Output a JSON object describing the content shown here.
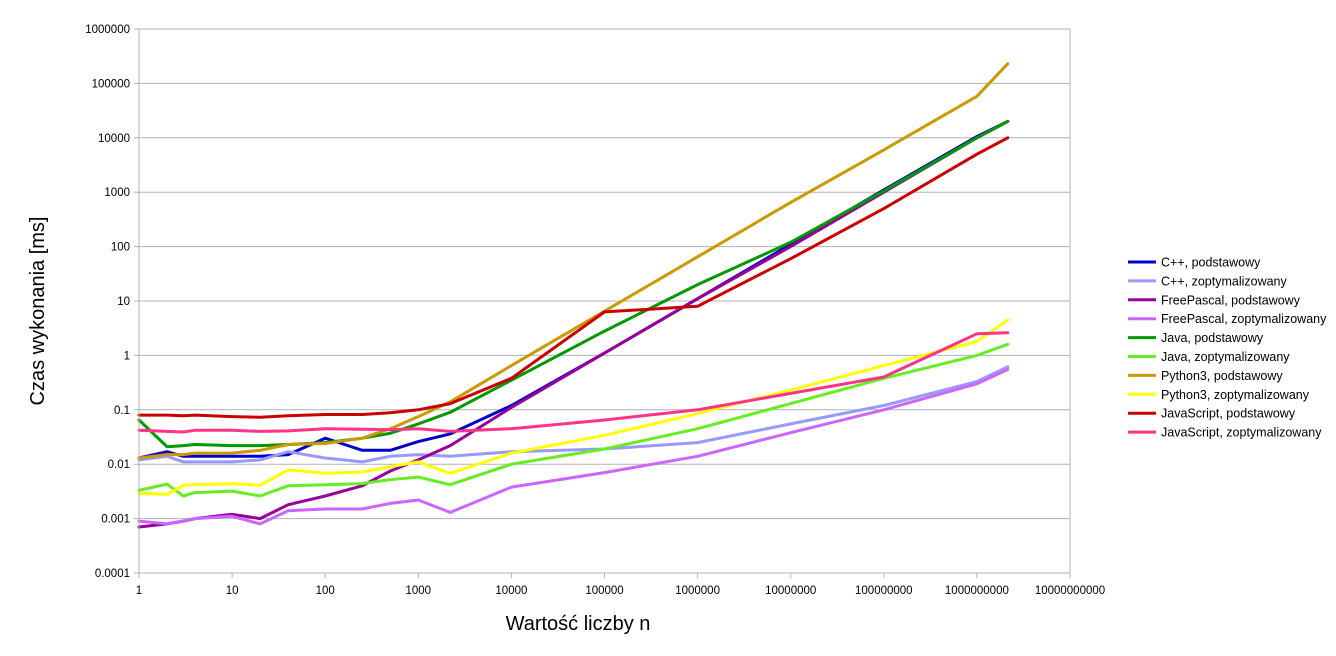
{
  "chart_data": {
    "type": "line",
    "title": "",
    "xlabel": "Wartość liczby n",
    "ylabel": "Czas wykonania [ms]",
    "x_scale": "log",
    "y_scale": "log",
    "xlim": [
      1,
      10000000000
    ],
    "ylim": [
      0.0001,
      1000000
    ],
    "grid": "horizontal major",
    "legend_position": "right",
    "x_ticks": [
      1,
      10,
      100,
      1000,
      10000,
      100000,
      1000000,
      10000000,
      100000000,
      1000000000,
      10000000000
    ],
    "x_tick_labels": [
      "1",
      "10",
      "100",
      "1000",
      "10000",
      "100000",
      "1000000",
      "10000000",
      "100000000",
      "1000000000",
      "10000000000"
    ],
    "y_ticks": [
      0.0001,
      0.001,
      0.01,
      0.1,
      1,
      10,
      100,
      1000,
      10000,
      100000,
      1000000
    ],
    "y_tick_labels": [
      "0.0001",
      "0.001",
      "0.01",
      "0.1",
      "1",
      "10",
      "100",
      "1000",
      "10000",
      "100000",
      "1000000"
    ],
    "series": [
      {
        "name": "C++, podstawowy",
        "color": "#0000cc",
        "points": [
          [
            1,
            0.013
          ],
          [
            2,
            0.017
          ],
          [
            3,
            0.014
          ],
          [
            4,
            0.014
          ],
          [
            10,
            0.014
          ],
          [
            20,
            0.014
          ],
          [
            40,
            0.015
          ],
          [
            100,
            0.03
          ],
          [
            150,
            0.024
          ],
          [
            250,
            0.018
          ],
          [
            500,
            0.018
          ],
          [
            1000,
            0.026
          ],
          [
            2200,
            0.036
          ],
          [
            10000,
            0.12
          ],
          [
            100000,
            1.1
          ],
          [
            1000000,
            11
          ],
          [
            10000000,
            110
          ],
          [
            100000000,
            1100
          ],
          [
            1000000000,
            10500
          ],
          [
            2147483647,
            20000
          ]
        ]
      },
      {
        "name": "C++, zoptymalizowany",
        "color": "#9999ff",
        "points": [
          [
            1,
            0.012
          ],
          [
            2,
            0.014
          ],
          [
            3,
            0.011
          ],
          [
            4,
            0.011
          ],
          [
            10,
            0.011
          ],
          [
            20,
            0.012
          ],
          [
            40,
            0.017
          ],
          [
            100,
            0.013
          ],
          [
            250,
            0.011
          ],
          [
            500,
            0.014
          ],
          [
            1000,
            0.015
          ],
          [
            2200,
            0.014
          ],
          [
            10000,
            0.017
          ],
          [
            100000,
            0.019
          ],
          [
            1000000,
            0.025
          ],
          [
            10000000,
            0.055
          ],
          [
            100000000,
            0.12
          ],
          [
            1000000000,
            0.33
          ],
          [
            2147483647,
            0.62
          ]
        ]
      },
      {
        "name": "FreePascal, podstawowy",
        "color": "#990099",
        "points": [
          [
            1,
            0.0007
          ],
          [
            2,
            0.0008
          ],
          [
            3,
            0.0009
          ],
          [
            4,
            0.001
          ],
          [
            10,
            0.0012
          ],
          [
            20,
            0.001
          ],
          [
            40,
            0.0018
          ],
          [
            100,
            0.0026
          ],
          [
            250,
            0.004
          ],
          [
            500,
            0.0075
          ],
          [
            1000,
            0.012
          ],
          [
            2200,
            0.022
          ],
          [
            10000,
            0.11
          ],
          [
            100000,
            1.1
          ],
          [
            1000000,
            11
          ],
          [
            10000000,
            100
          ],
          [
            100000000,
            1000
          ],
          [
            1000000000,
            10000
          ],
          [
            2147483647,
            20000
          ]
        ]
      },
      {
        "name": "FreePascal, zoptymalizowany",
        "color": "#cc66ff",
        "points": [
          [
            1,
            0.0009
          ],
          [
            2,
            0.0008
          ],
          [
            3,
            0.0009
          ],
          [
            4,
            0.001
          ],
          [
            10,
            0.0011
          ],
          [
            20,
            0.0008
          ],
          [
            40,
            0.0014
          ],
          [
            100,
            0.0015
          ],
          [
            250,
            0.0015
          ],
          [
            500,
            0.0019
          ],
          [
            1000,
            0.0022
          ],
          [
            2200,
            0.0013
          ],
          [
            10000,
            0.0038
          ],
          [
            100000,
            0.007
          ],
          [
            1000000,
            0.014
          ],
          [
            10000000,
            0.038
          ],
          [
            100000000,
            0.1
          ],
          [
            1000000000,
            0.3
          ],
          [
            2147483647,
            0.55
          ]
        ]
      },
      {
        "name": "Java, podstawowy",
        "color": "#009900",
        "points": [
          [
            1,
            0.065
          ],
          [
            2,
            0.021
          ],
          [
            3,
            0.022
          ],
          [
            4,
            0.023
          ],
          [
            10,
            0.022
          ],
          [
            20,
            0.022
          ],
          [
            40,
            0.023
          ],
          [
            100,
            0.025
          ],
          [
            250,
            0.03
          ],
          [
            500,
            0.037
          ],
          [
            1000,
            0.055
          ],
          [
            2200,
            0.09
          ],
          [
            10000,
            0.35
          ],
          [
            100000,
            2.8
          ],
          [
            1000000,
            20
          ],
          [
            10000000,
            120
          ],
          [
            100000000,
            1050
          ],
          [
            1000000000,
            10000
          ],
          [
            2147483647,
            20000
          ]
        ]
      },
      {
        "name": "Java, zoptymalizowany",
        "color": "#66ee22",
        "points": [
          [
            1,
            0.0033
          ],
          [
            2,
            0.0043
          ],
          [
            3,
            0.0026
          ],
          [
            4,
            0.003
          ],
          [
            10,
            0.0032
          ],
          [
            20,
            0.0026
          ],
          [
            40,
            0.004
          ],
          [
            100,
            0.0042
          ],
          [
            250,
            0.0044
          ],
          [
            500,
            0.0052
          ],
          [
            1000,
            0.0058
          ],
          [
            2200,
            0.0042
          ],
          [
            10000,
            0.01
          ],
          [
            100000,
            0.019
          ],
          [
            1000000,
            0.045
          ],
          [
            10000000,
            0.13
          ],
          [
            100000000,
            0.38
          ],
          [
            1000000000,
            1.0
          ],
          [
            2147483647,
            1.6
          ]
        ]
      },
      {
        "name": "Python3, podstawowy",
        "color": "#cc9900",
        "points": [
          [
            1,
            0.013
          ],
          [
            2,
            0.015
          ],
          [
            3,
            0.015
          ],
          [
            4,
            0.016
          ],
          [
            10,
            0.016
          ],
          [
            20,
            0.018
          ],
          [
            40,
            0.023
          ],
          [
            100,
            0.024
          ],
          [
            250,
            0.03
          ],
          [
            500,
            0.045
          ],
          [
            1000,
            0.075
          ],
          [
            2200,
            0.14
          ],
          [
            10000,
            0.65
          ],
          [
            100000,
            6.5
          ],
          [
            1000000,
            65
          ],
          [
            10000000,
            650
          ],
          [
            100000000,
            6000
          ],
          [
            1000000000,
            58000
          ],
          [
            2147483647,
            230000
          ]
        ]
      },
      {
        "name": "Python3, zoptymalizowany",
        "color": "#ffff00",
        "points": [
          [
            1,
            0.0029
          ],
          [
            2,
            0.0028
          ],
          [
            3,
            0.0041
          ],
          [
            4,
            0.0042
          ],
          [
            10,
            0.0044
          ],
          [
            20,
            0.0041
          ],
          [
            40,
            0.0079
          ],
          [
            100,
            0.0068
          ],
          [
            250,
            0.0072
          ],
          [
            500,
            0.009
          ],
          [
            1000,
            0.011
          ],
          [
            2200,
            0.0068
          ],
          [
            10000,
            0.016
          ],
          [
            100000,
            0.034
          ],
          [
            1000000,
            0.085
          ],
          [
            10000000,
            0.23
          ],
          [
            100000000,
            0.65
          ],
          [
            1000000000,
            1.8
          ],
          [
            2147483647,
            4.5
          ]
        ]
      },
      {
        "name": "JavaScript, podstawowy",
        "color": "#cc0000",
        "points": [
          [
            1,
            0.08
          ],
          [
            2,
            0.08
          ],
          [
            3,
            0.078
          ],
          [
            4,
            0.08
          ],
          [
            10,
            0.075
          ],
          [
            20,
            0.073
          ],
          [
            40,
            0.078
          ],
          [
            100,
            0.082
          ],
          [
            250,
            0.082
          ],
          [
            500,
            0.088
          ],
          [
            1000,
            0.1
          ],
          [
            2200,
            0.13
          ],
          [
            10000,
            0.38
          ],
          [
            100000,
            6.3
          ],
          [
            1000000,
            8
          ],
          [
            10000000,
            60
          ],
          [
            100000000,
            500
          ],
          [
            1000000000,
            5000
          ],
          [
            2147483647,
            10000
          ]
        ]
      },
      {
        "name": "JavaScript, zoptymalizowany",
        "color": "#ff3388",
        "points": [
          [
            1,
            0.042
          ],
          [
            2,
            0.04
          ],
          [
            3,
            0.039
          ],
          [
            4,
            0.042
          ],
          [
            10,
            0.042
          ],
          [
            20,
            0.04
          ],
          [
            40,
            0.041
          ],
          [
            100,
            0.045
          ],
          [
            250,
            0.044
          ],
          [
            500,
            0.043
          ],
          [
            1000,
            0.045
          ],
          [
            2200,
            0.04
          ],
          [
            10000,
            0.045
          ],
          [
            100000,
            0.065
          ],
          [
            1000000,
            0.1
          ],
          [
            10000000,
            0.2
          ],
          [
            100000000,
            0.4
          ],
          [
            1000000000,
            2.5
          ],
          [
            2147483647,
            2.6
          ]
        ]
      }
    ]
  }
}
